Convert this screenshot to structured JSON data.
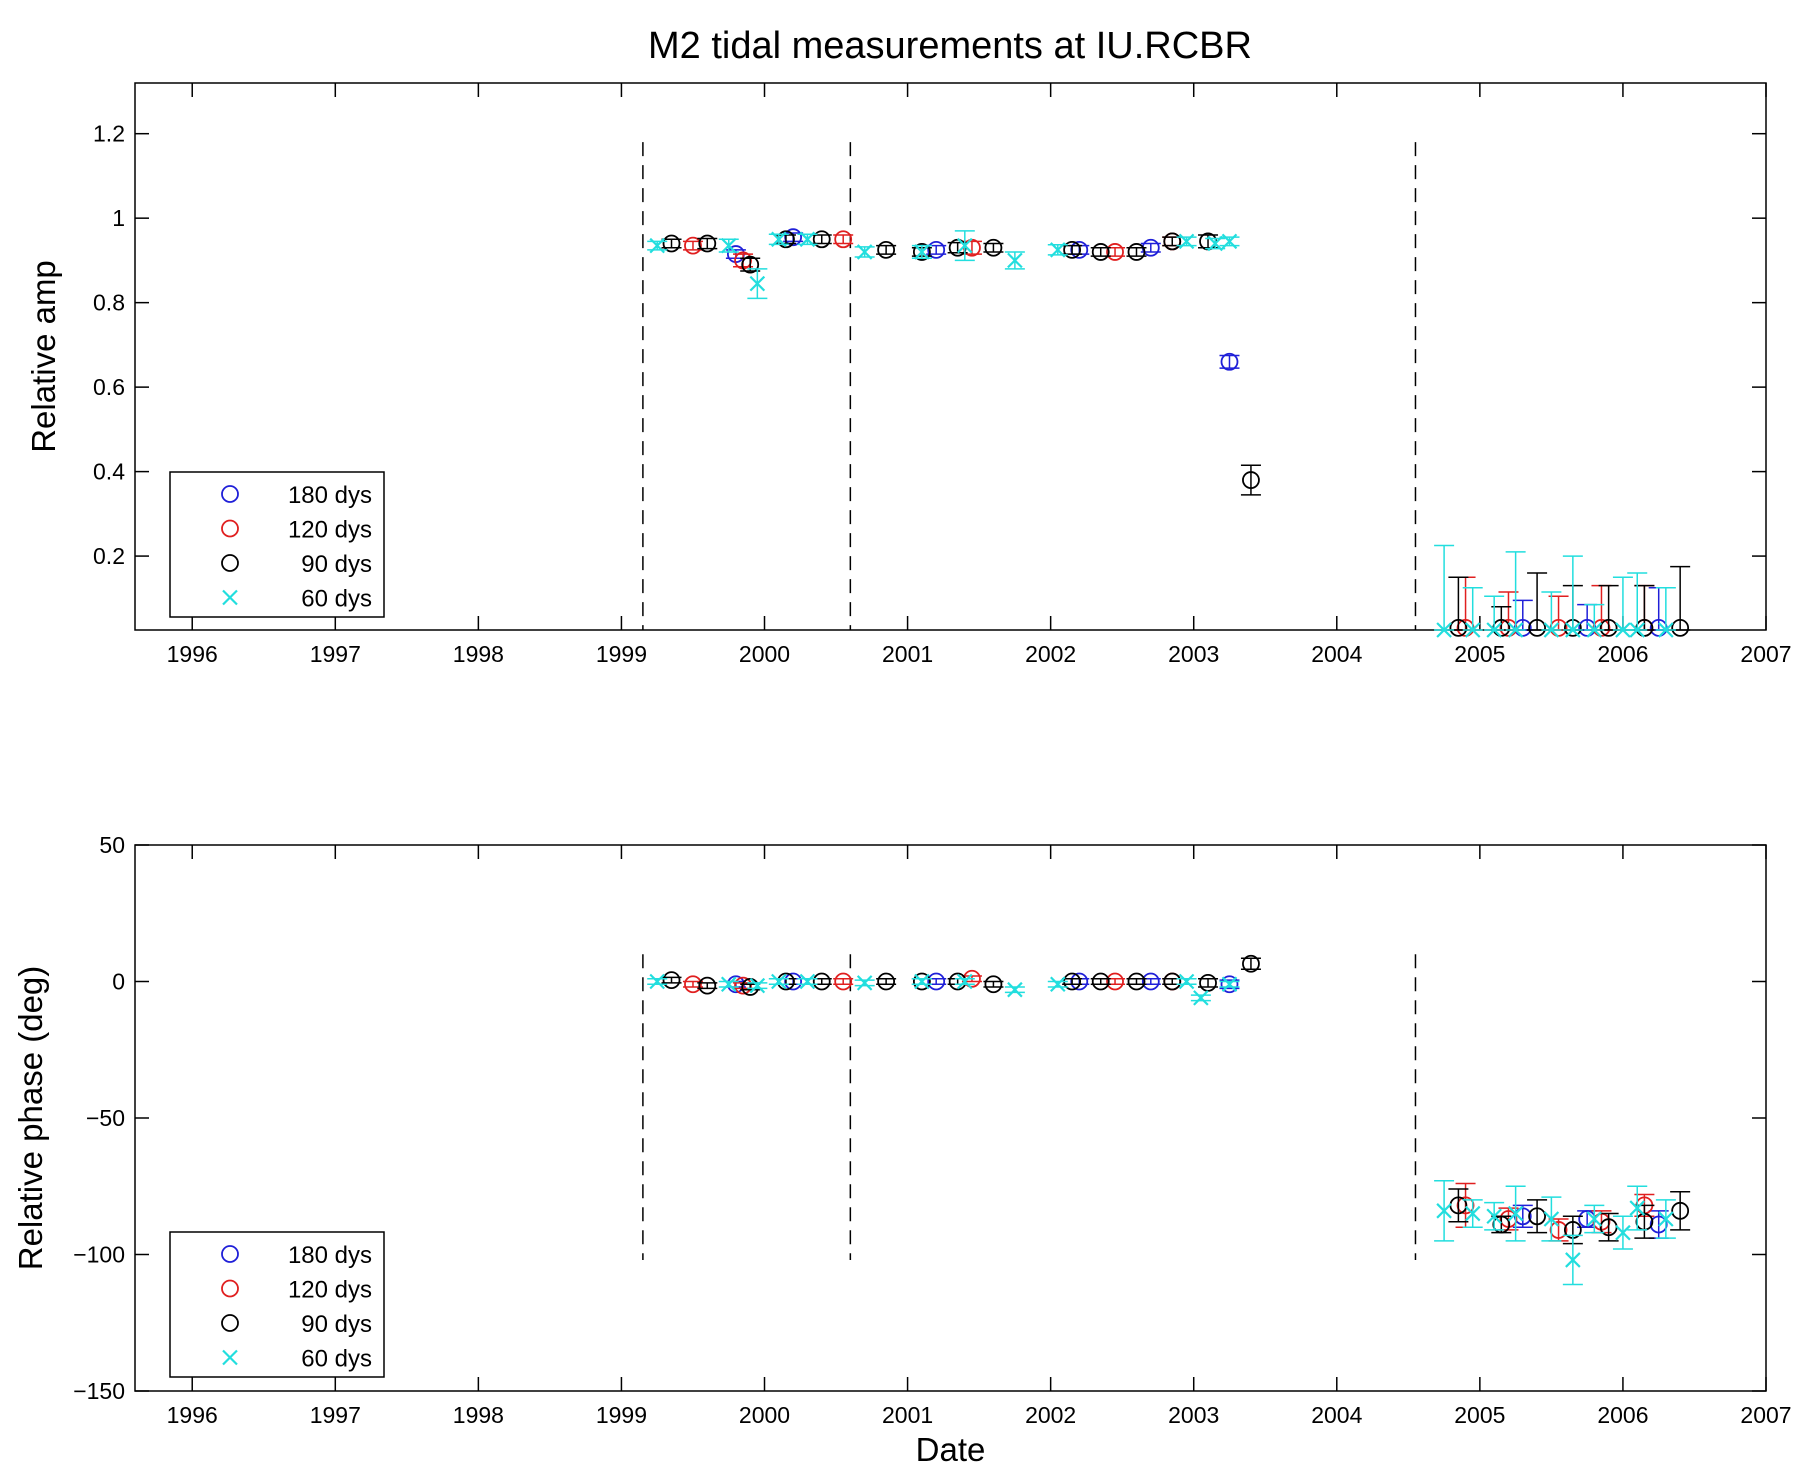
{
  "figure": {
    "title": "M2 tidal measurements at IU.RCBR"
  },
  "colors": {
    "180 dys": "#1f1fd8",
    "120 dys": "#e01f1f",
    "90 dys": "#000000",
    "60 dys": "#22dede"
  },
  "chart_data": [
    {
      "type": "scatter",
      "title": "M2 tidal measurements at IU.RCBR",
      "xlabel": "",
      "ylabel": "Relative amp",
      "xlim": [
        1995.6,
        2007.0
      ],
      "ylim": [
        0.025,
        1.32
      ],
      "xticks": [
        1996,
        1997,
        1998,
        1999,
        2000,
        2001,
        2002,
        2003,
        2004,
        2005,
        2006,
        2007
      ],
      "yticks": [
        0.2,
        0.4,
        0.6,
        0.8,
        1,
        1.2
      ],
      "ytick_labels": [
        "0.2",
        "0.4",
        "0.6",
        "0.8",
        "1",
        "1.2"
      ],
      "grid": false,
      "legend_position": "bottom-left",
      "vlines": [
        1999.15,
        2000.6,
        2004.55
      ],
      "vline_range": [
        0.025,
        1.18
      ],
      "series": [
        {
          "name": "180 dys",
          "marker": "circle",
          "points": [
            [
              1999.8,
              0.915,
              0.01
            ],
            [
              2000.2,
              0.955,
              0.01
            ],
            [
              2001.2,
              0.925,
              0.01
            ],
            [
              2002.2,
              0.925,
              0.01
            ],
            [
              2002.7,
              0.93,
              0.01
            ],
            [
              2003.25,
              0.66,
              0.015
            ],
            [
              2005.3,
              0.03,
              0.065
            ],
            [
              2005.75,
              0.03,
              0.055
            ],
            [
              2006.25,
              0.03,
              0.095
            ]
          ]
        },
        {
          "name": "120 dys",
          "marker": "circle",
          "points": [
            [
              1999.5,
              0.935,
              0.01
            ],
            [
              1999.85,
              0.9,
              0.015
            ],
            [
              2000.55,
              0.95,
              0.01
            ],
            [
              2001.45,
              0.93,
              0.015
            ],
            [
              2002.45,
              0.92,
              0.01
            ],
            [
              2002.85,
              0.945,
              0.01
            ],
            [
              2004.9,
              0.03,
              0.12
            ],
            [
              2005.2,
              0.03,
              0.085
            ],
            [
              2005.55,
              0.03,
              0.075
            ],
            [
              2005.85,
              0.03,
              0.1
            ],
            [
              2006.15,
              0.03,
              0.1
            ]
          ]
        },
        {
          "name": "90 dys",
          "marker": "circle",
          "points": [
            [
              1999.35,
              0.94,
              0.01
            ],
            [
              1999.6,
              0.94,
              0.012
            ],
            [
              1999.9,
              0.89,
              0.015
            ],
            [
              2000.15,
              0.95,
              0.01
            ],
            [
              2000.4,
              0.95,
              0.01
            ],
            [
              2000.85,
              0.925,
              0.01
            ],
            [
              2001.1,
              0.92,
              0.01
            ],
            [
              2001.35,
              0.93,
              0.012
            ],
            [
              2001.6,
              0.93,
              0.01
            ],
            [
              2002.15,
              0.925,
              0.01
            ],
            [
              2002.35,
              0.92,
              0.01
            ],
            [
              2002.6,
              0.92,
              0.01
            ],
            [
              2002.85,
              0.945,
              0.01
            ],
            [
              2003.1,
              0.945,
              0.015
            ],
            [
              2003.4,
              0.38,
              0.035
            ],
            [
              2004.85,
              0.03,
              0.12
            ],
            [
              2005.15,
              0.03,
              0.05
            ],
            [
              2005.4,
              0.03,
              0.13
            ],
            [
              2005.65,
              0.03,
              0.1
            ],
            [
              2005.9,
              0.03,
              0.1
            ],
            [
              2006.15,
              0.03,
              0.1
            ],
            [
              2006.4,
              0.03,
              0.145
            ]
          ]
        },
        {
          "name": "60 dys",
          "marker": "x",
          "points": [
            [
              1999.25,
              0.935,
              0.01
            ],
            [
              1999.75,
              0.935,
              0.015
            ],
            [
              1999.95,
              0.845,
              0.035
            ],
            [
              2000.1,
              0.95,
              0.012
            ],
            [
              2000.3,
              0.95,
              0.012
            ],
            [
              2000.7,
              0.92,
              0.012
            ],
            [
              2001.1,
              0.92,
              0.015
            ],
            [
              2001.4,
              0.935,
              0.035
            ],
            [
              2001.75,
              0.9,
              0.02
            ],
            [
              2002.05,
              0.925,
              0.012
            ],
            [
              2002.95,
              0.945,
              0.01
            ],
            [
              2003.15,
              0.94,
              0.012
            ],
            [
              2003.25,
              0.945,
              0.01
            ],
            [
              2004.75,
              0.025,
              0.2
            ],
            [
              2004.95,
              0.025,
              0.1
            ],
            [
              2005.1,
              0.025,
              0.08
            ],
            [
              2005.25,
              0.025,
              0.185
            ],
            [
              2005.5,
              0.025,
              0.09
            ],
            [
              2005.65,
              0.025,
              0.175
            ],
            [
              2005.8,
              0.025,
              0.06
            ],
            [
              2006.0,
              0.025,
              0.125
            ],
            [
              2006.1,
              0.025,
              0.135
            ],
            [
              2006.3,
              0.025,
              0.1
            ]
          ]
        }
      ]
    },
    {
      "type": "scatter",
      "title": "",
      "xlabel": "Date",
      "ylabel": "Relative phase (deg)",
      "xlim": [
        1995.6,
        2007.0
      ],
      "ylim": [
        -150,
        50
      ],
      "xticks": [
        1996,
        1997,
        1998,
        1999,
        2000,
        2001,
        2002,
        2003,
        2004,
        2005,
        2006,
        2007
      ],
      "yticks": [
        -150,
        -100,
        -50,
        0,
        50
      ],
      "ytick_labels": [
        "−150",
        "−100",
        "−50",
        "0",
        "50"
      ],
      "grid": false,
      "legend_position": "bottom-left",
      "vlines": [
        1999.15,
        2000.6,
        2004.55
      ],
      "vline_range": [
        -102,
        10
      ],
      "series": [
        {
          "name": "180 dys",
          "marker": "circle",
          "points": [
            [
              1999.8,
              -1,
              1
            ],
            [
              2000.2,
              0,
              1
            ],
            [
              2001.2,
              0,
              1
            ],
            [
              2002.2,
              0,
              1
            ],
            [
              2002.7,
              0,
              1
            ],
            [
              2003.25,
              -1,
              1.5
            ],
            [
              2005.3,
              -86,
              4
            ],
            [
              2005.75,
              -87,
              3
            ],
            [
              2006.25,
              -89,
              5
            ]
          ]
        },
        {
          "name": "120 dys",
          "marker": "circle",
          "points": [
            [
              1999.5,
              -1,
              1
            ],
            [
              1999.85,
              -1.5,
              1
            ],
            [
              2000.55,
              0,
              1
            ],
            [
              2001.45,
              1,
              1
            ],
            [
              2002.45,
              0,
              1
            ],
            [
              2002.85,
              0,
              1
            ],
            [
              2004.9,
              -82,
              8
            ],
            [
              2005.2,
              -87,
              4
            ],
            [
              2005.55,
              -91,
              4
            ],
            [
              2005.85,
              -88,
              4
            ],
            [
              2006.15,
              -82,
              4
            ]
          ]
        },
        {
          "name": "90 dys",
          "marker": "circle",
          "points": [
            [
              1999.35,
              0.5,
              1
            ],
            [
              1999.6,
              -1.5,
              1
            ],
            [
              1999.9,
              -2,
              1
            ],
            [
              2000.15,
              0,
              1
            ],
            [
              2000.4,
              0,
              1
            ],
            [
              2000.85,
              0,
              1
            ],
            [
              2001.1,
              0,
              1
            ],
            [
              2001.35,
              0,
              1
            ],
            [
              2001.6,
              -1,
              1
            ],
            [
              2002.15,
              0,
              1
            ],
            [
              2002.35,
              0,
              1
            ],
            [
              2002.6,
              0,
              1
            ],
            [
              2002.85,
              0,
              1
            ],
            [
              2003.1,
              -0.5,
              1.5
            ],
            [
              2003.4,
              6.5,
              2
            ],
            [
              2004.85,
              -82,
              6
            ],
            [
              2005.15,
              -89,
              3
            ],
            [
              2005.4,
              -86,
              6
            ],
            [
              2005.65,
              -91,
              5
            ],
            [
              2005.9,
              -90,
              5
            ],
            [
              2006.15,
              -88,
              6
            ],
            [
              2006.4,
              -84,
              7
            ]
          ]
        },
        {
          "name": "60 dys",
          "marker": "x",
          "points": [
            [
              1999.25,
              0,
              1
            ],
            [
              1999.75,
              -1,
              1
            ],
            [
              1999.95,
              -1.5,
              1
            ],
            [
              2000.1,
              0,
              1
            ],
            [
              2000.3,
              0,
              1
            ],
            [
              2000.7,
              -0.5,
              1
            ],
            [
              2001.1,
              0,
              1
            ],
            [
              2001.4,
              0,
              1
            ],
            [
              2001.75,
              -3,
              1
            ],
            [
              2002.05,
              -1,
              1
            ],
            [
              2002.95,
              0,
              1
            ],
            [
              2003.05,
              -6,
              1
            ],
            [
              2003.25,
              -1,
              1
            ],
            [
              2004.75,
              -84,
              11
            ],
            [
              2004.95,
              -85,
              5
            ],
            [
              2005.1,
              -86,
              5
            ],
            [
              2005.25,
              -85,
              10
            ],
            [
              2005.5,
              -87,
              8
            ],
            [
              2005.65,
              -102,
              9
            ],
            [
              2005.8,
              -87,
              5
            ],
            [
              2006.0,
              -92,
              6
            ],
            [
              2006.1,
              -83,
              8
            ],
            [
              2006.3,
              -87,
              7
            ]
          ]
        }
      ]
    }
  ]
}
